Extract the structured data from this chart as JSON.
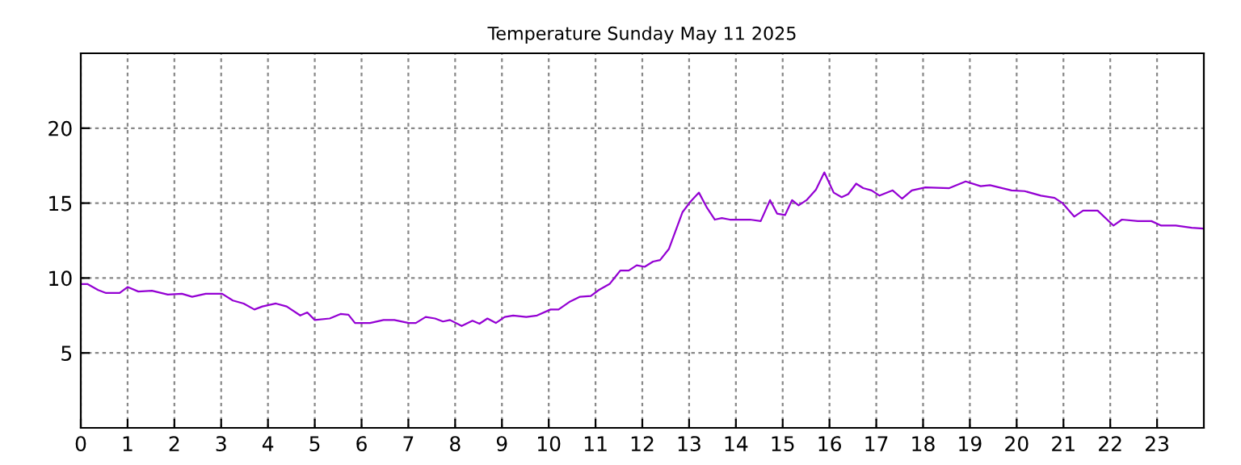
{
  "chart_data": {
    "type": "line",
    "title": "Temperature Sunday May 11 2025",
    "x": [
      0,
      0.14,
      0.37,
      0.54,
      0.83,
      1.0,
      1.23,
      1.52,
      1.86,
      2.16,
      2.38,
      2.67,
      3.02,
      3.25,
      3.48,
      3.71,
      3.88,
      4.17,
      4.4,
      4.69,
      4.84,
      5.0,
      5.32,
      5.55,
      5.72,
      5.86,
      6.18,
      6.47,
      6.7,
      7.01,
      7.16,
      7.37,
      7.57,
      7.74,
      7.89,
      8.14,
      8.37,
      8.52,
      8.69,
      8.87,
      9.06,
      9.24,
      9.52,
      9.75,
      10.04,
      10.21,
      10.44,
      10.67,
      10.9,
      11.07,
      11.3,
      11.53,
      11.71,
      11.88,
      12.05,
      12.23,
      12.38,
      12.57,
      12.86,
      13.03,
      13.21,
      13.38,
      13.55,
      13.7,
      13.87,
      14.07,
      14.3,
      14.53,
      14.73,
      14.88,
      15.05,
      15.2,
      15.34,
      15.51,
      15.71,
      15.89,
      16.09,
      16.26,
      16.4,
      16.57,
      16.72,
      16.9,
      17.07,
      17.35,
      17.55,
      17.76,
      18.05,
      18.56,
      18.91,
      19.23,
      19.43,
      19.89,
      20.17,
      20.52,
      20.81,
      20.98,
      21.23,
      21.42,
      21.73,
      22.07,
      22.25,
      22.59,
      22.88,
      23.09,
      23.4,
      23.74,
      23.97
    ],
    "series": [
      {
        "color": "#9400d3",
        "values": [
          9.6,
          9.6,
          9.2,
          9.0,
          9.0,
          9.4,
          9.1,
          9.15,
          8.9,
          8.95,
          8.75,
          8.95,
          8.95,
          8.5,
          8.3,
          7.9,
          8.1,
          8.3,
          8.1,
          7.5,
          7.7,
          7.2,
          7.3,
          7.6,
          7.55,
          7.0,
          7.0,
          7.2,
          7.2,
          7.0,
          7.0,
          7.4,
          7.3,
          7.1,
          7.2,
          6.8,
          7.15,
          6.95,
          7.3,
          7.0,
          7.4,
          7.5,
          7.4,
          7.5,
          7.9,
          7.9,
          8.4,
          8.75,
          8.8,
          9.2,
          9.6,
          10.5,
          10.5,
          10.85,
          10.75,
          11.1,
          11.2,
          11.95,
          14.4,
          15.1,
          15.7,
          14.7,
          13.9,
          14.0,
          13.9,
          13.9,
          13.9,
          13.8,
          15.2,
          14.3,
          14.2,
          15.2,
          14.85,
          15.2,
          15.9,
          17.05,
          15.7,
          15.4,
          15.6,
          16.3,
          16.0,
          15.85,
          15.5,
          15.85,
          15.3,
          15.85,
          16.05,
          16.0,
          16.45,
          16.13,
          16.2,
          15.85,
          15.8,
          15.5,
          15.35,
          15.0,
          14.1,
          14.5,
          14.5,
          13.5,
          13.9,
          13.8,
          13.8,
          13.5,
          13.5,
          13.35,
          13.3
        ]
      }
    ],
    "xlim": [
      0,
      24
    ],
    "xticks": [
      0,
      1,
      2,
      3,
      4,
      5,
      6,
      7,
      8,
      9,
      10,
      11,
      12,
      13,
      14,
      15,
      16,
      17,
      18,
      19,
      20,
      21,
      22,
      23
    ],
    "ylim": [
      0,
      25
    ],
    "yticks": [
      5,
      10,
      15,
      20
    ],
    "grid": true,
    "line_style": "solid",
    "legend": false
  }
}
